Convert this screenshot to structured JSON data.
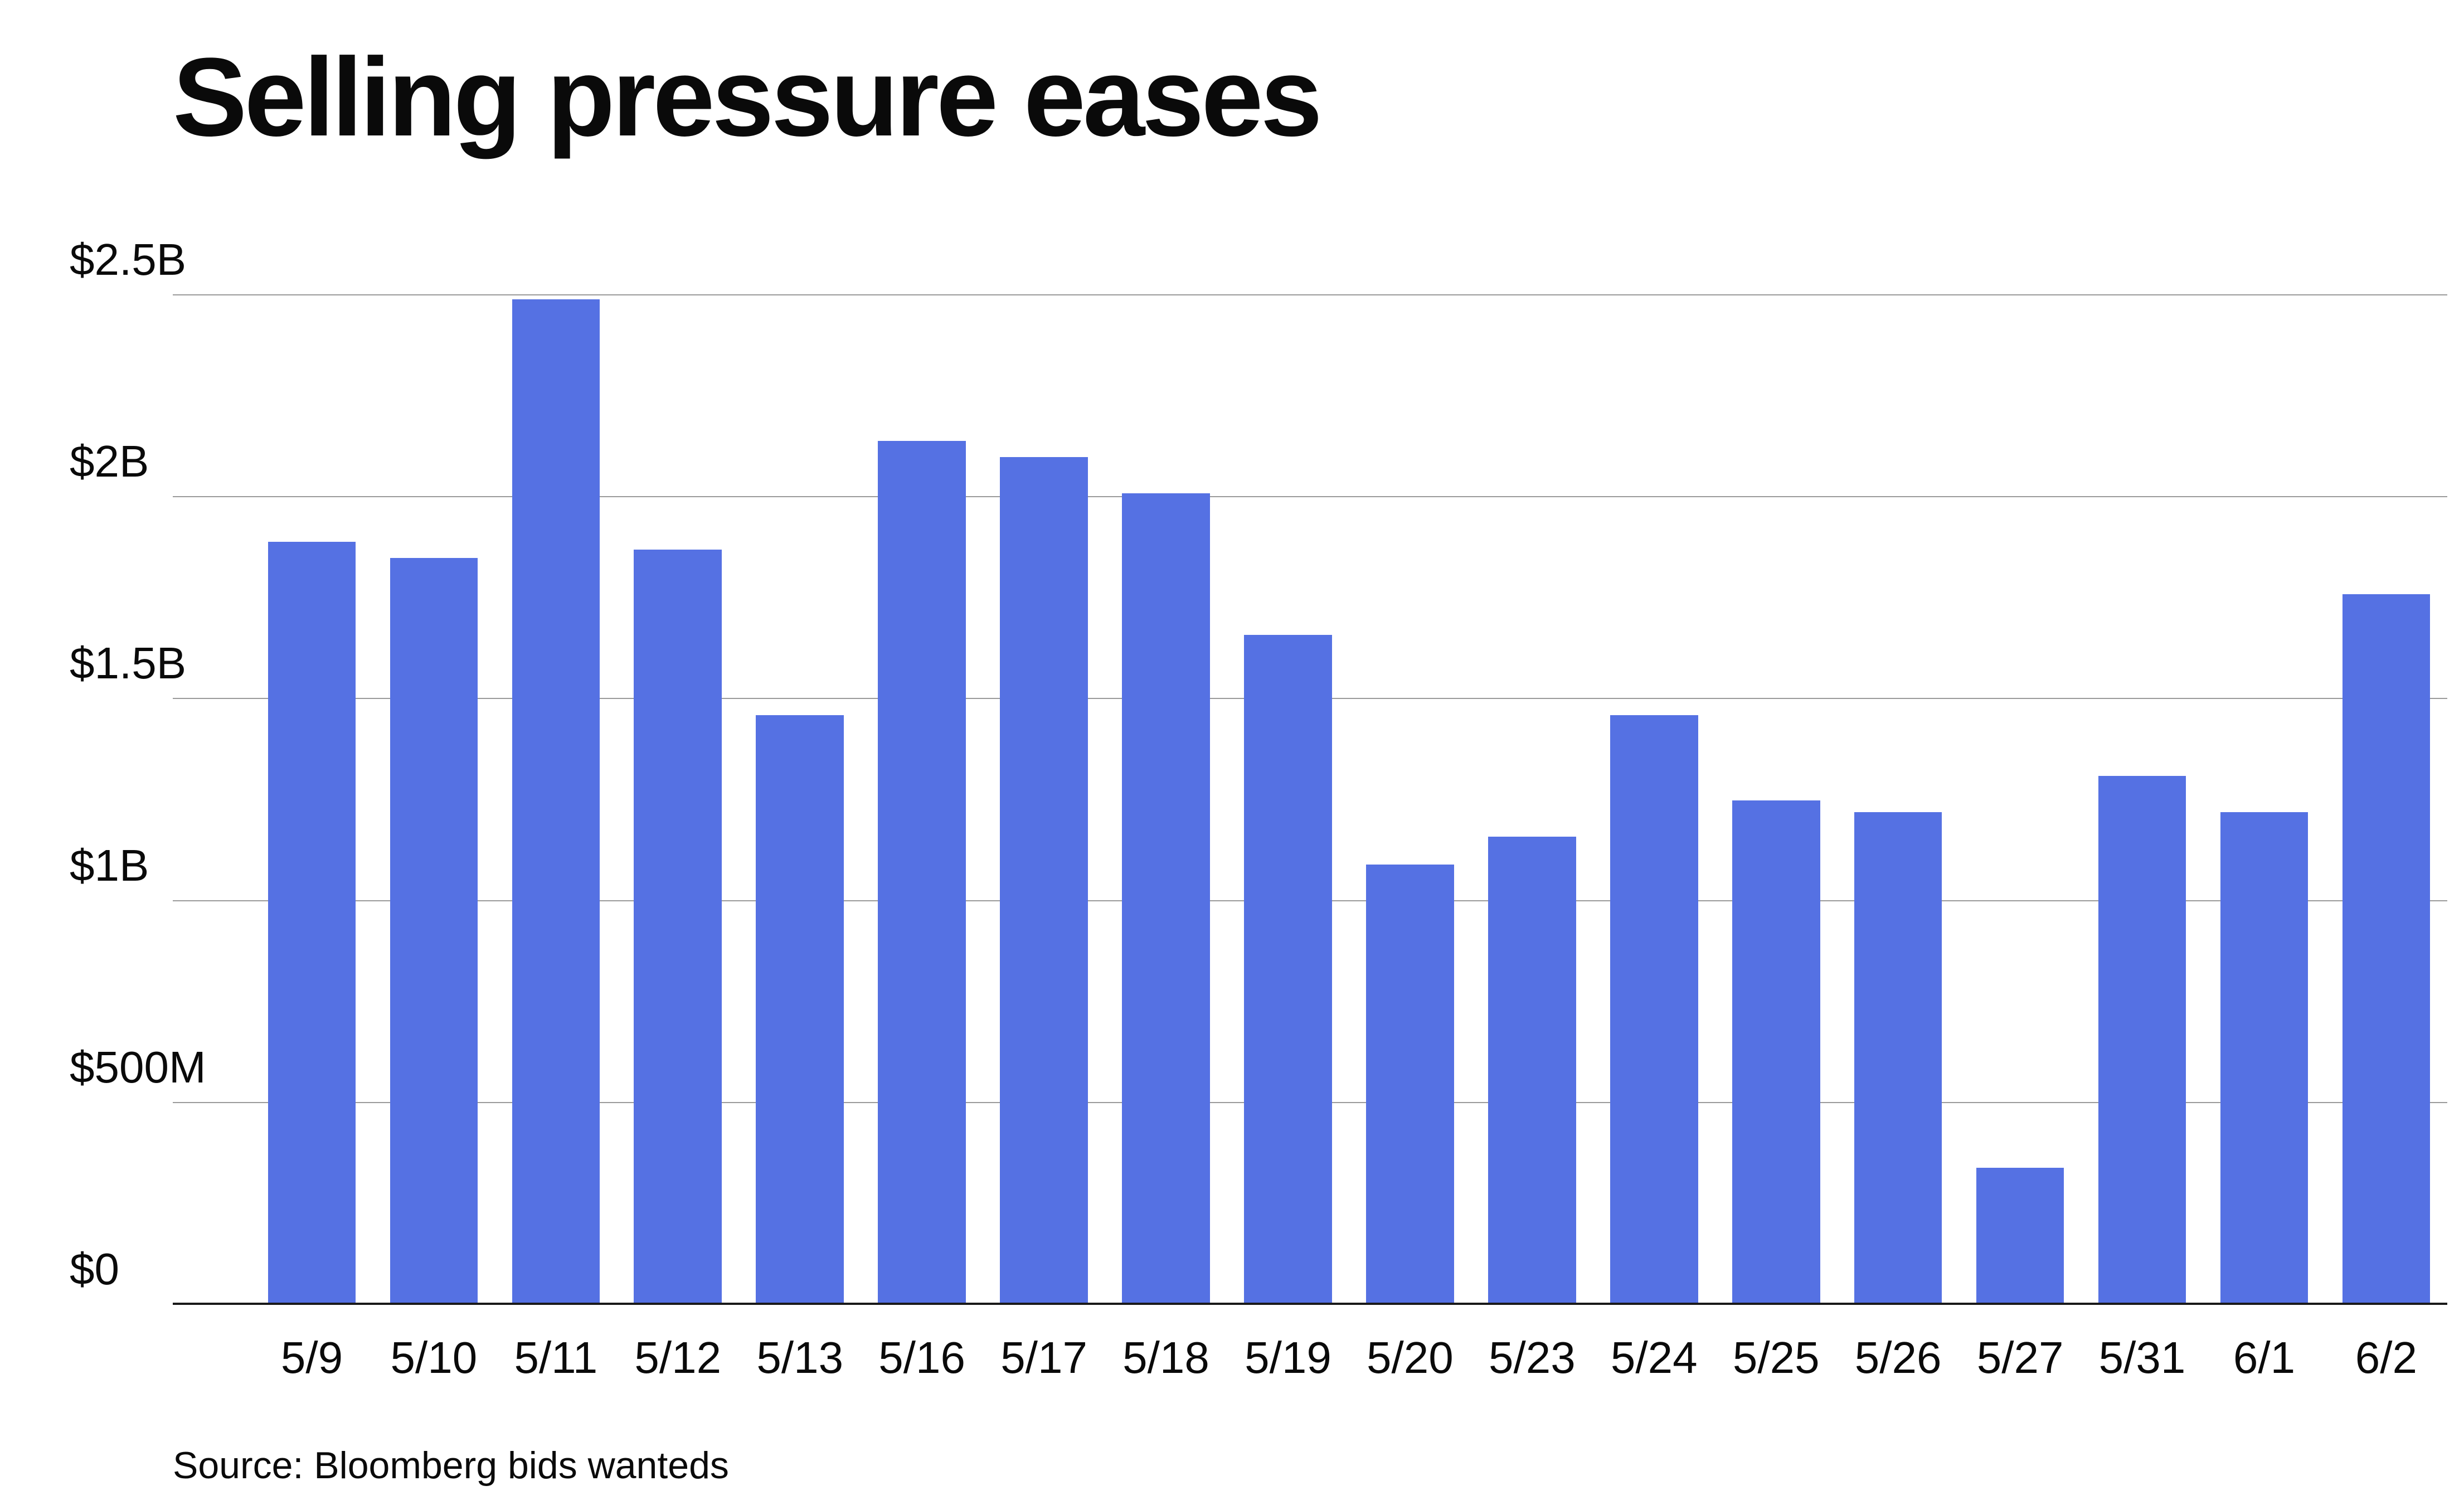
{
  "source": "Source: Bloomberg bids wanteds",
  "chart_data": {
    "type": "bar",
    "title": "Selling pressure eases",
    "categories": [
      "5/9",
      "5/10",
      "5/11",
      "5/12",
      "5/13",
      "5/16",
      "5/17",
      "5/18",
      "5/19",
      "5/20",
      "5/23",
      "5/24",
      "5/25",
      "5/26",
      "5/27",
      "5/31",
      "6/1",
      "6/2"
    ],
    "values": [
      1.89,
      1.85,
      2.49,
      1.87,
      1.46,
      2.14,
      2.1,
      2.01,
      1.66,
      1.09,
      1.16,
      1.46,
      1.25,
      1.22,
      0.34,
      1.31,
      1.22,
      1.76
    ],
    "value_unit": "billions USD",
    "xlabel": "",
    "ylabel": "",
    "ylim": [
      0,
      2.5
    ],
    "yticks": {
      "values": [
        0,
        0.5,
        1,
        1.5,
        2,
        2.5
      ],
      "labels": [
        "$0",
        "$500M",
        "$1B",
        "$1.5B",
        "$2B",
        "$2.5B"
      ]
    },
    "grid": true,
    "legend": false,
    "bar_color": "#5571E3",
    "gridline_color": "#9a9a9a",
    "axis_color": "#1a1a1a"
  }
}
